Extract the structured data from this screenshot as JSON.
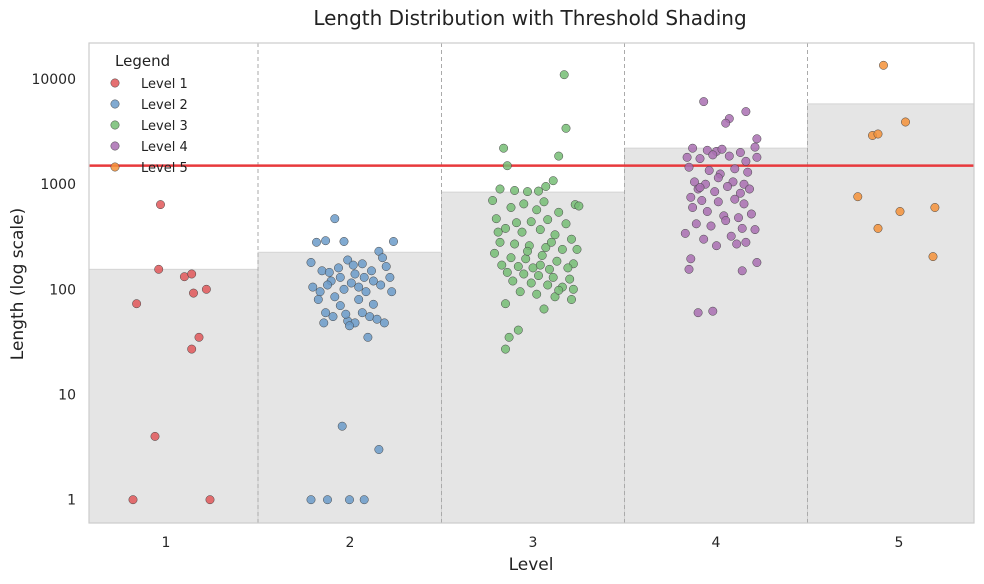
{
  "chart_data": {
    "type": "scatter",
    "title": "Length Distribution with Threshold Shading",
    "xlabel": "Level",
    "ylabel": "Length (log scale)",
    "yscale": "log",
    "ylim": [
      0.6,
      22000
    ],
    "x_ticks": [
      "1",
      "2",
      "3",
      "4",
      "5"
    ],
    "y_ticks": [
      {
        "value": 1,
        "label": "1"
      },
      {
        "value": 10,
        "label": "10"
      },
      {
        "value": 100,
        "label": "100"
      },
      {
        "value": 1000,
        "label": "1000"
      },
      {
        "value": 10000,
        "label": "10000"
      }
    ],
    "grid": false,
    "legend": {
      "title": "Legend",
      "position": "top-left"
    },
    "threshold_line": {
      "value": 1500,
      "color": "#e8393c"
    },
    "shaded_regions": [
      {
        "level": 1,
        "upper": 155
      },
      {
        "level": 2,
        "upper": 225
      },
      {
        "level": 3,
        "upper": 840
      },
      {
        "level": 4,
        "upper": 2200
      },
      {
        "level": 5,
        "upper": 5800
      }
    ],
    "shade_color": "#e5e5e5",
    "series": [
      {
        "name": "Level 1",
        "color": "#e05759",
        "points": [
          [
            0.82,
            1
          ],
          [
            1.24,
            1
          ],
          [
            0.94,
            4
          ],
          [
            1.14,
            27
          ],
          [
            1.18,
            35
          ],
          [
            0.84,
            73
          ],
          [
            1.15,
            92
          ],
          [
            1.22,
            100
          ],
          [
            1.1,
            132
          ],
          [
            1.14,
            140
          ],
          [
            0.96,
            155
          ],
          [
            0.97,
            640
          ]
        ]
      },
      {
        "name": "Level 2",
        "color": "#6b9bc9",
        "points": [
          [
            1.79,
            1
          ],
          [
            1.88,
            1
          ],
          [
            2.0,
            1
          ],
          [
            2.08,
            1
          ],
          [
            1.96,
            5
          ],
          [
            2.16,
            3
          ],
          [
            1.82,
            280
          ],
          [
            1.87,
            290
          ],
          [
            1.92,
            470
          ],
          [
            2.16,
            230
          ],
          [
            2.24,
            285
          ],
          [
            1.97,
            285
          ],
          [
            1.79,
            180
          ],
          [
            1.85,
            150
          ],
          [
            1.9,
            120
          ],
          [
            1.94,
            160
          ],
          [
            1.99,
            190
          ],
          [
            2.03,
            140
          ],
          [
            2.07,
            175
          ],
          [
            2.12,
            150
          ],
          [
            2.18,
            200
          ],
          [
            2.22,
            130
          ],
          [
            1.8,
            105
          ],
          [
            1.84,
            95
          ],
          [
            1.88,
            110
          ],
          [
            1.92,
            85
          ],
          [
            1.97,
            100
          ],
          [
            2.01,
            115
          ],
          [
            2.05,
            105
          ],
          [
            2.09,
            95
          ],
          [
            2.13,
            120
          ],
          [
            2.17,
            110
          ],
          [
            2.23,
            95
          ],
          [
            1.83,
            80
          ],
          [
            1.87,
            60
          ],
          [
            1.91,
            55
          ],
          [
            1.95,
            70
          ],
          [
            1.99,
            50
          ],
          [
            2.03,
            48
          ],
          [
            2.07,
            60
          ],
          [
            2.11,
            55
          ],
          [
            2.15,
            52
          ],
          [
            2.19,
            48
          ],
          [
            1.86,
            48
          ],
          [
            2.0,
            45
          ],
          [
            2.1,
            35
          ],
          [
            1.98,
            58
          ],
          [
            2.05,
            80
          ],
          [
            2.13,
            72
          ],
          [
            1.89,
            145
          ],
          [
            2.08,
            130
          ],
          [
            2.2,
            165
          ],
          [
            1.95,
            130
          ],
          [
            2.02,
            170
          ]
        ]
      },
      {
        "name": "Level 3",
        "color": "#76bd74",
        "points": [
          [
            3.17,
            11000
          ],
          [
            3.18,
            3400
          ],
          [
            2.84,
            2200
          ],
          [
            3.14,
            1850
          ],
          [
            2.86,
            1500
          ],
          [
            2.82,
            900
          ],
          [
            2.9,
            870
          ],
          [
            2.97,
            850
          ],
          [
            3.03,
            860
          ],
          [
            3.11,
            1080
          ],
          [
            3.07,
            950
          ],
          [
            2.78,
            700
          ],
          [
            2.95,
            650
          ],
          [
            3.06,
            680
          ],
          [
            3.23,
            640
          ],
          [
            3.25,
            620
          ],
          [
            2.88,
            600
          ],
          [
            3.02,
            570
          ],
          [
            3.14,
            540
          ],
          [
            2.8,
            470
          ],
          [
            2.91,
            430
          ],
          [
            2.99,
            440
          ],
          [
            3.08,
            460
          ],
          [
            3.18,
            420
          ],
          [
            2.85,
            380
          ],
          [
            2.94,
            350
          ],
          [
            3.04,
            370
          ],
          [
            3.12,
            330
          ],
          [
            3.21,
            300
          ],
          [
            2.82,
            280
          ],
          [
            2.9,
            270
          ],
          [
            2.98,
            260
          ],
          [
            3.07,
            250
          ],
          [
            3.16,
            240
          ],
          [
            3.24,
            240
          ],
          [
            2.79,
            220
          ],
          [
            2.88,
            200
          ],
          [
            2.96,
            195
          ],
          [
            3.05,
            210
          ],
          [
            3.13,
            185
          ],
          [
            3.22,
            175
          ],
          [
            2.83,
            170
          ],
          [
            2.92,
            165
          ],
          [
            3.0,
            160
          ],
          [
            3.09,
            155
          ],
          [
            3.19,
            160
          ],
          [
            2.86,
            145
          ],
          [
            2.95,
            140
          ],
          [
            3.03,
            135
          ],
          [
            3.11,
            130
          ],
          [
            3.2,
            125
          ],
          [
            2.89,
            120
          ],
          [
            2.99,
            115
          ],
          [
            3.08,
            110
          ],
          [
            3.16,
            105
          ],
          [
            3.22,
            100
          ],
          [
            2.93,
            95
          ],
          [
            3.02,
            90
          ],
          [
            3.12,
            85
          ],
          [
            3.21,
            80
          ],
          [
            2.85,
            73
          ],
          [
            3.06,
            65
          ],
          [
            2.92,
            41
          ],
          [
            2.87,
            35
          ],
          [
            2.85,
            27
          ],
          [
            3.14,
            98
          ],
          [
            3.04,
            170
          ],
          [
            2.81,
            350
          ],
          [
            2.97,
            230
          ],
          [
            3.1,
            280
          ]
        ]
      },
      {
        "name": "Level 4",
        "color": "#a96fb2",
        "points": [
          [
            3.93,
            6100
          ],
          [
            4.16,
            4900
          ],
          [
            4.07,
            4200
          ],
          [
            4.05,
            3800
          ],
          [
            4.22,
            2700
          ],
          [
            3.87,
            2200
          ],
          [
            3.95,
            2100
          ],
          [
            4.0,
            2050
          ],
          [
            4.03,
            2150
          ],
          [
            4.13,
            2000
          ],
          [
            4.21,
            2250
          ],
          [
            3.84,
            1800
          ],
          [
            3.91,
            1750
          ],
          [
            3.98,
            1900
          ],
          [
            4.07,
            1850
          ],
          [
            4.16,
            1650
          ],
          [
            4.22,
            1800
          ],
          [
            3.85,
            1450
          ],
          [
            3.96,
            1350
          ],
          [
            4.02,
            1250
          ],
          [
            4.1,
            1400
          ],
          [
            4.17,
            1300
          ],
          [
            3.88,
            1050
          ],
          [
            3.94,
            1000
          ],
          [
            4.01,
            1150
          ],
          [
            4.09,
            1050
          ],
          [
            4.15,
            1000
          ],
          [
            3.9,
            900
          ],
          [
            3.99,
            850
          ],
          [
            4.06,
            950
          ],
          [
            4.13,
            820
          ],
          [
            4.18,
            900
          ],
          [
            3.86,
            750
          ],
          [
            3.92,
            700
          ],
          [
            4.01,
            680
          ],
          [
            4.1,
            720
          ],
          [
            4.15,
            650
          ],
          [
            3.87,
            600
          ],
          [
            3.95,
            550
          ],
          [
            4.04,
            500
          ],
          [
            4.12,
            480
          ],
          [
            4.19,
            520
          ],
          [
            3.89,
            420
          ],
          [
            3.97,
            400
          ],
          [
            4.05,
            450
          ],
          [
            4.14,
            380
          ],
          [
            4.21,
            370
          ],
          [
            3.83,
            340
          ],
          [
            3.93,
            300
          ],
          [
            4.0,
            260
          ],
          [
            4.08,
            320
          ],
          [
            4.16,
            280
          ],
          [
            3.86,
            195
          ],
          [
            3.85,
            155
          ],
          [
            4.14,
            150
          ],
          [
            4.22,
            180
          ],
          [
            3.9,
            60
          ],
          [
            3.98,
            62
          ],
          [
            4.11,
            270
          ],
          [
            3.91,
            930
          ]
        ]
      },
      {
        "name": "Level 5",
        "color": "#f4923a",
        "points": [
          [
            4.91,
            13500
          ],
          [
            5.03,
            3900
          ],
          [
            4.85,
            2900
          ],
          [
            4.88,
            3000
          ],
          [
            4.77,
            760
          ],
          [
            5.0,
            550
          ],
          [
            5.19,
            600
          ],
          [
            4.88,
            380
          ],
          [
            5.18,
            205
          ]
        ]
      }
    ]
  }
}
